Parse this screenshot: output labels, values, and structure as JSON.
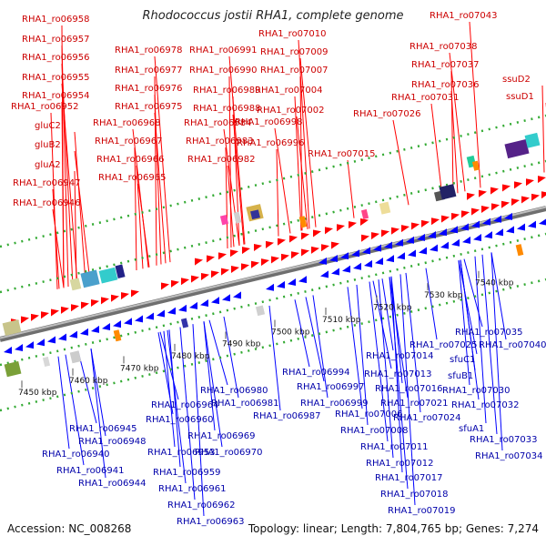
{
  "title": "Rhodococcus jostii RHA1, complete genome",
  "accession": "Accession: NC_008268",
  "summary": "Topology: linear; Length: 7,804,765 bp; Genes: 7,274",
  "scale_ticks": [
    "7450 kbp",
    "7460 kbp",
    "7470 kbp",
    "7480 kbp",
    "7490 kbp",
    "7500 kbp",
    "7510 kbp",
    "7520 kbp",
    "7530 kbp",
    "7540 kbp"
  ],
  "colors": {
    "forward_gene": "#ff0000",
    "reverse_gene": "#0000ff",
    "forward_label": "#cc0000",
    "reverse_label": "#0000aa",
    "backbone": "#8c8c8c",
    "dots": "#33aa33"
  },
  "forward_labels": [
    "RHA1_ro06958",
    "RHA1_ro06957",
    "RHA1_ro06956",
    "RHA1_ro06955",
    "RHA1_ro06954",
    "RHA1_ro06952",
    "gluC2",
    "gluB2",
    "gluA2",
    "RHA1_ro06947",
    "RHA1_ro06946",
    "RHA1_ro06978",
    "RHA1_ro06977",
    "RHA1_ro06976",
    "RHA1_ro06975",
    "RHA1_ro06968",
    "RHA1_ro06967",
    "RHA1_ro06966",
    "RHA1_ro06965",
    "RHA1_ro06991",
    "RHA1_ro06990",
    "RHA1_ro06989",
    "RHA1_ro06988",
    "RHA1_ro06984",
    "RHA1_ro06983",
    "RHA1_ro06982",
    "RHA1_ro07010",
    "RHA1_ro07009",
    "RHA1_ro07007",
    "RHA1_ro07004",
    "RHA1_ro07002",
    "RHA1_ro06998",
    "RHA1_ro06996",
    "RHA1_ro07015",
    "RHA1_ro07043",
    "RHA1_ro07038",
    "RHA1_ro07037",
    "RHA1_ro07036",
    "RHA1_ro07031",
    "RHA1_ro07026",
    "ssuD2",
    "ssuD1"
  ],
  "reverse_labels": [
    "RHA1_ro06945",
    "RHA1_ro06948",
    "RHA1_ro06940",
    "RHA1_ro06941",
    "RHA1_ro06944",
    "RHA1_ro06953",
    "RHA1_ro06964",
    "RHA1_ro06960",
    "RHA1_ro06959",
    "RHA1_ro06961",
    "RHA1_ro06962",
    "RHA1_ro06963",
    "RHA1_ro06980",
    "RHA1_ro06981",
    "RHA1_ro06969",
    "RHA1_ro06970",
    "RHA1_ro06994",
    "RHA1_ro06987",
    "RHA1_ro06997",
    "RHA1_ro06999",
    "RHA1_ro07014",
    "RHA1_ro07013",
    "RHA1_ro07006",
    "RHA1_ro07008",
    "RHA1_ro07011",
    "RHA1_ro07012",
    "RHA1_ro07017",
    "RHA1_ro07018",
    "RHA1_ro07019",
    "RHA1_ro07016",
    "RHA1_ro07021",
    "RHA1_ro07024",
    "RHA1_ro07025",
    "sfuC1",
    "sfuB1",
    "sfuA1",
    "RHA1_ro07035",
    "RHA1_ro07040",
    "RHA1_ro07030",
    "RHA1_ro07032",
    "RHA1_ro07033",
    "RHA1_ro07034"
  ]
}
